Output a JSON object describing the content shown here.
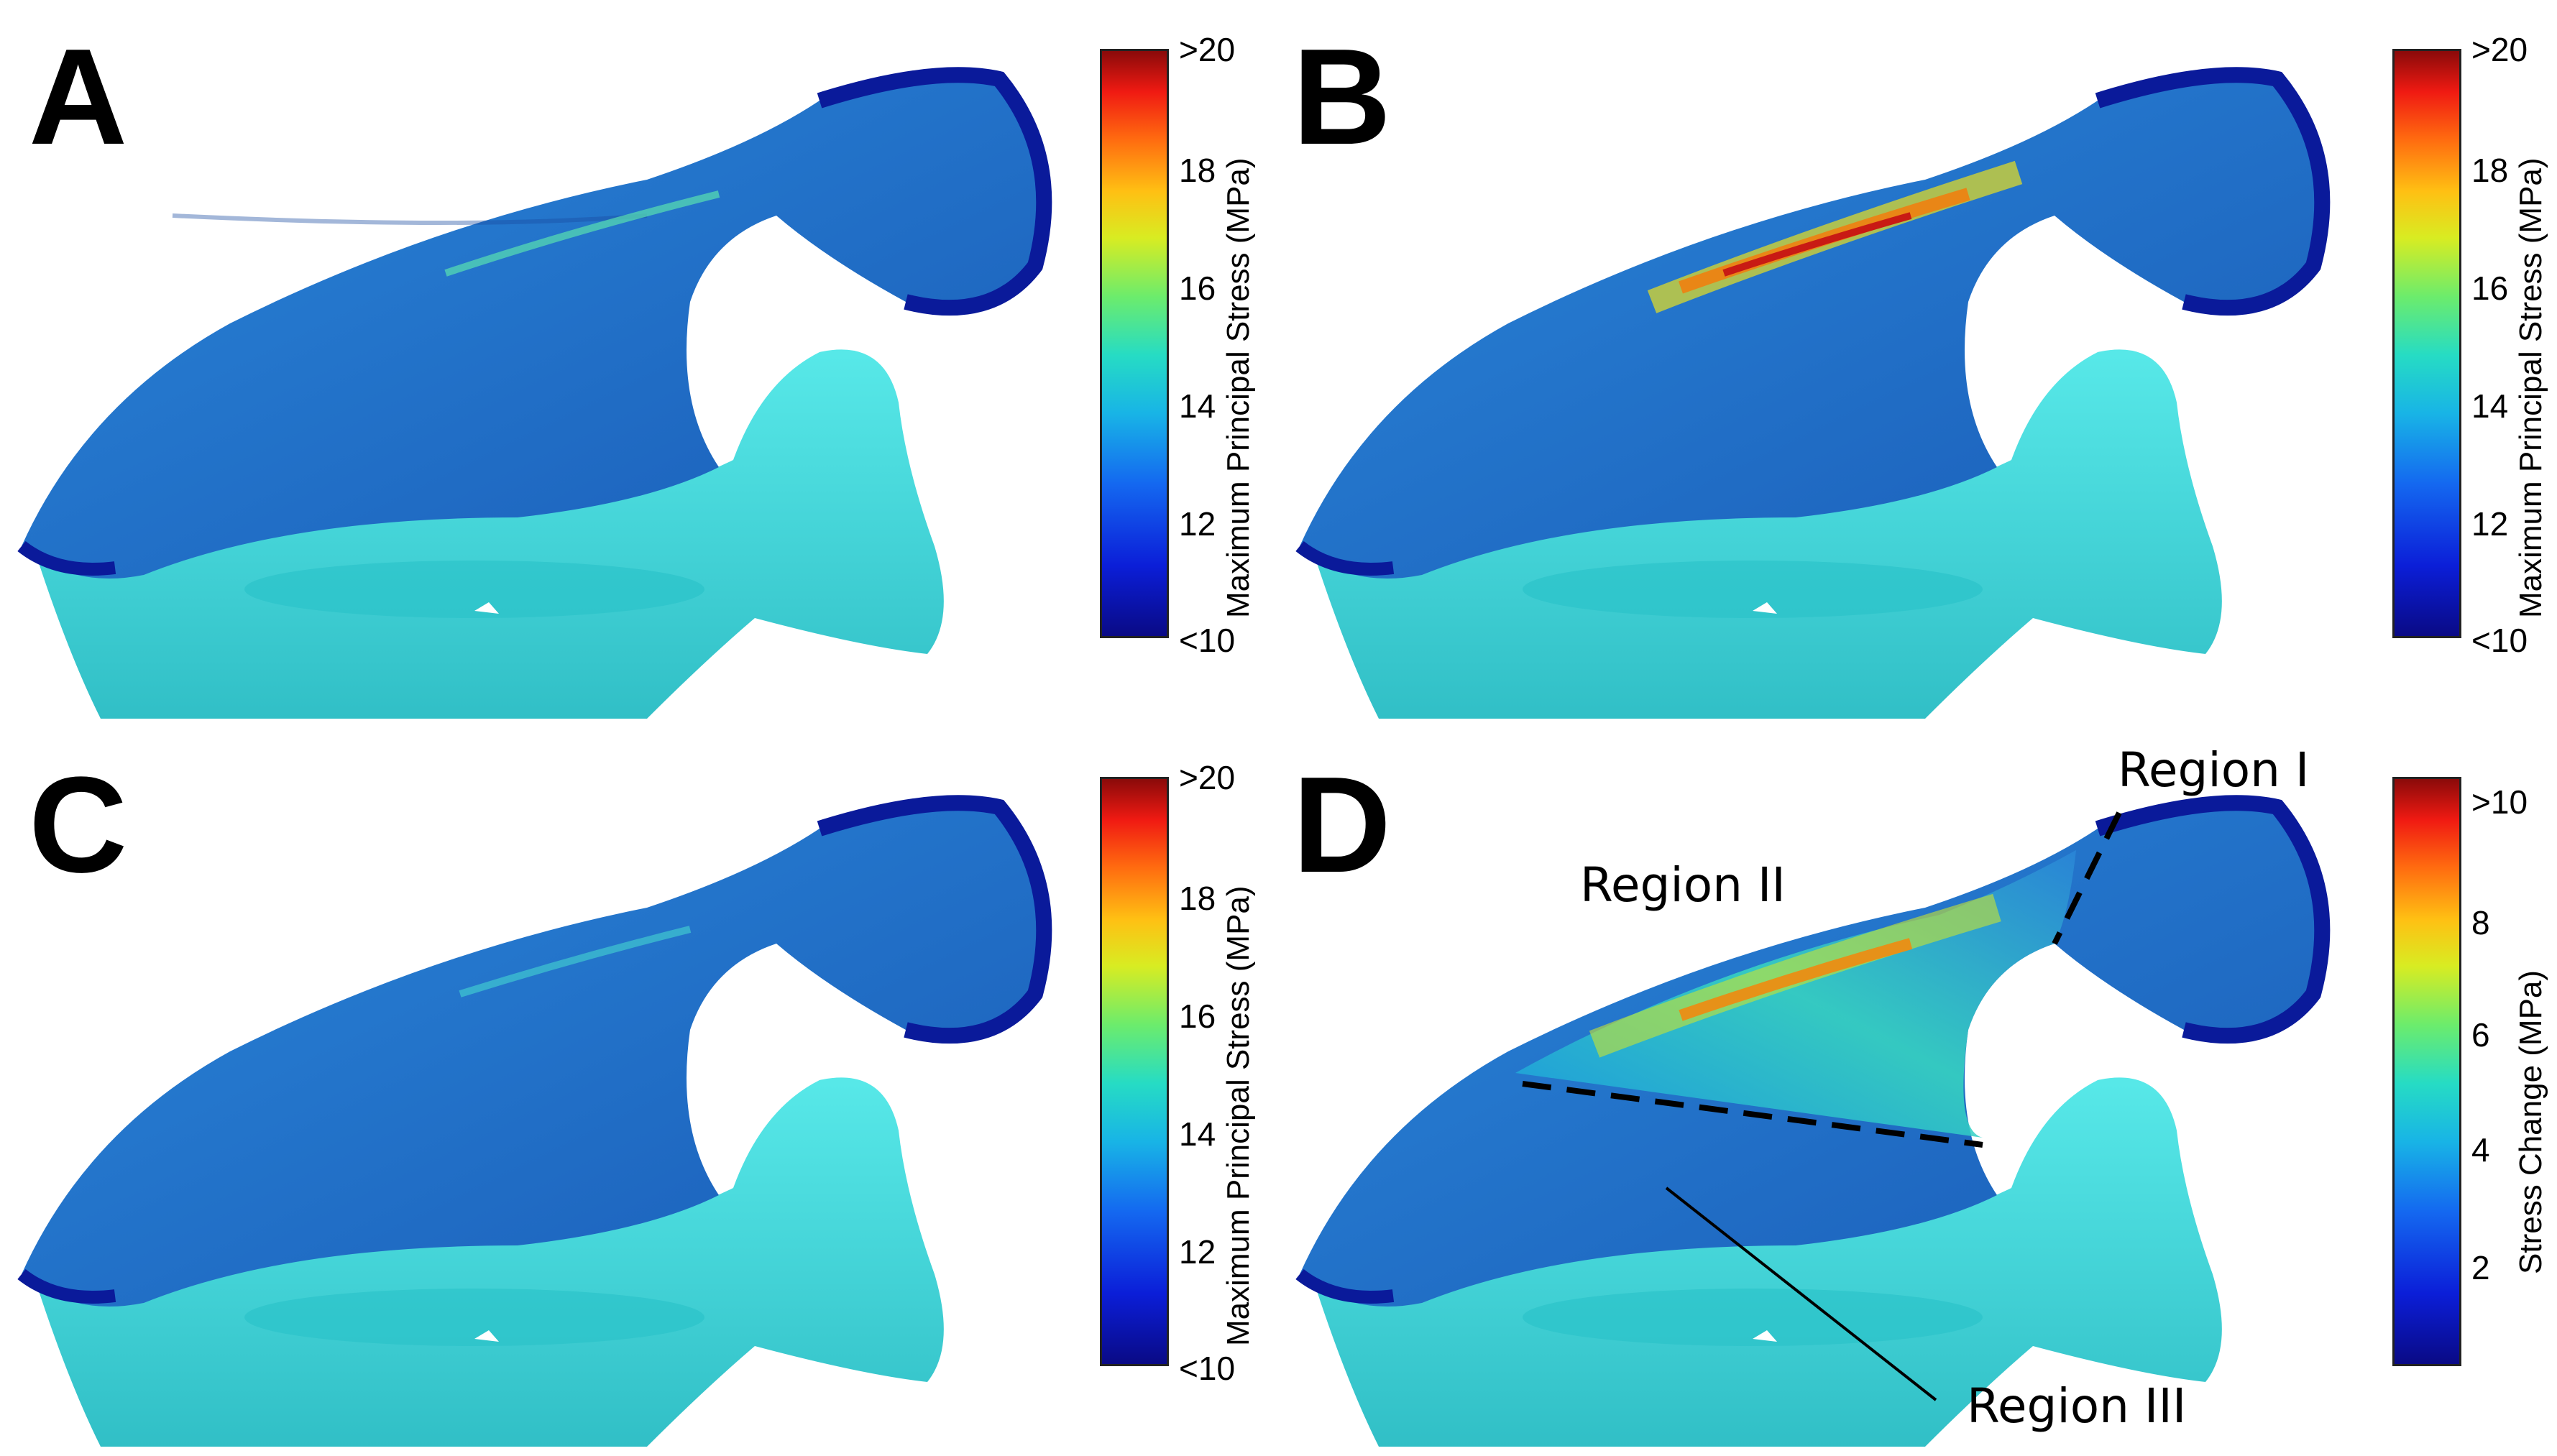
{
  "panels": [
    {
      "letter": "A",
      "colorbar_label": "Maximum Principal Stress (MPa)",
      "ticks": [
        ">20",
        "18",
        "16",
        "14",
        "12",
        "<10"
      ]
    },
    {
      "letter": "B",
      "colorbar_label": "Maximum Principal Stress (MPa)",
      "ticks": [
        ">20",
        "18",
        "16",
        "14",
        "12",
        "<10"
      ]
    },
    {
      "letter": "C",
      "colorbar_label": "Maximum Principal Stress (MPa)",
      "ticks": [
        ">20",
        "18",
        "16",
        "14",
        "12",
        "<10"
      ]
    },
    {
      "letter": "D",
      "colorbar_label": "Stress Change (MPa)",
      "ticks": [
        ">10",
        "8",
        "6",
        "4",
        "2"
      ]
    }
  ],
  "regions": {
    "region_1": "Region I",
    "region_2": "Region II",
    "region_3": "Region III"
  },
  "colors": {
    "bone_blue": "#1f6fc4",
    "deep_blue": "#0a1a9a",
    "cyan_bone": "#2fd6d6",
    "hotspot_red": "#d8201a"
  }
}
